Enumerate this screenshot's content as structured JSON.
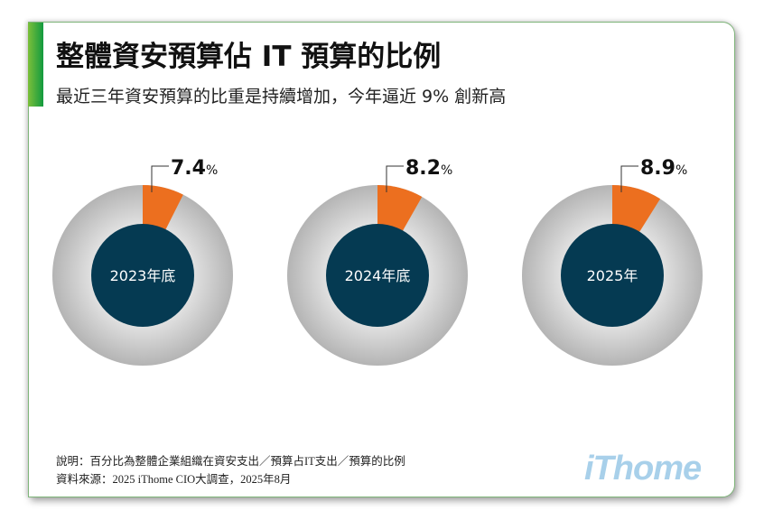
{
  "header": {
    "title": "整體資安預算佔 IT 預算的比例",
    "subtitle": "最近三年資安預算的比重是持續增加，今年逼近 9% 創新高"
  },
  "colors": {
    "accent_green": "#119a3f",
    "slice_orange": "#ec6f1f",
    "ring_gray": "#c4c4c4",
    "center_navy": "#053a52",
    "logo_blue": "#a8d0ea"
  },
  "chart_data": {
    "type": "pie",
    "title": "整體資安預算佔 IT 預算的比例",
    "subtitle": "最近三年資安預算的比重是持續增加，今年逼近 9% 創新高",
    "unit": "%",
    "donuts": [
      {
        "label": "2023年底",
        "value": 7.4,
        "value_text": "7.4",
        "unit": "%"
      },
      {
        "label": "2024年底",
        "value": 8.2,
        "value_text": "8.2",
        "unit": "%"
      },
      {
        "label": "2025年",
        "value": 8.9,
        "value_text": "8.9",
        "unit": "%"
      }
    ]
  },
  "footer": {
    "note": "說明：百分比為整體企業組織在資安支出／預算占IT支出／預算的比例",
    "source": "資料來源：2025 iThome CIO大調查，2025年8月",
    "logo": "iThome"
  }
}
